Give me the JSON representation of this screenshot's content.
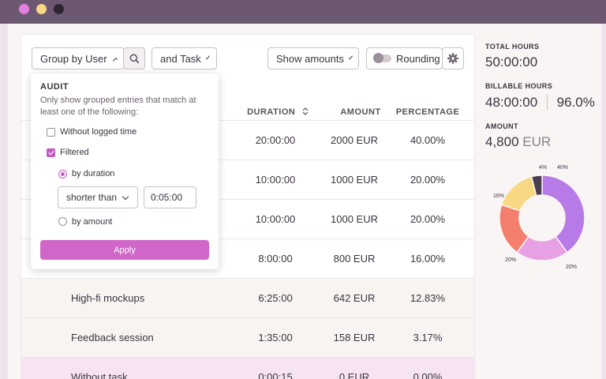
{
  "window": {
    "controls": [
      "close",
      "minimize",
      "maximize"
    ],
    "colors": {
      "titlebar": "#6c5870",
      "accent": "#d066c8"
    }
  },
  "toolbar": {
    "group_by_label": "Group by User",
    "and_task_label": "and Task",
    "show_amounts_label": "Show amounts",
    "rounding_label": "Rounding"
  },
  "table": {
    "headers": {
      "duration": "DURATION",
      "amount": "AMOUNT",
      "percentage": "PERCENTAGE"
    },
    "rows": [
      {
        "task": "",
        "duration": "20:00:00",
        "amount": "2000 EUR",
        "percentage": "40.00%"
      },
      {
        "task": "",
        "duration": "10:00:00",
        "amount": "1000 EUR",
        "percentage": "20.00%"
      },
      {
        "task": "",
        "duration": "10:00:00",
        "amount": "1000 EUR",
        "percentage": "20.00%"
      },
      {
        "task": "",
        "duration": "8:00:00",
        "amount": "800 EUR",
        "percentage": "16.00%"
      },
      {
        "task": "High-fi mockups",
        "duration": "6:25:00",
        "amount": "642 EUR",
        "percentage": "12.83%"
      },
      {
        "task": "Feedback session",
        "duration": "1:35:00",
        "amount": "158 EUR",
        "percentage": "3.17%"
      },
      {
        "task": "Without task",
        "duration": "0:00:15",
        "amount": "0 EUR",
        "percentage": "0.00%"
      }
    ]
  },
  "audit": {
    "title": "AUDIT",
    "description": "Only show grouped entries that match at least one of the following:",
    "without_logged_time": {
      "label": "Without logged time",
      "checked": false
    },
    "filtered": {
      "label": "Filtered",
      "checked": true
    },
    "by_duration": {
      "label": "by duration",
      "selected": true
    },
    "comparator": "shorter than",
    "duration_value": "0:05:00",
    "by_amount": {
      "label": "by amount",
      "selected": false
    },
    "apply_label": "Apply"
  },
  "summary": {
    "total_hours_label": "TOTAL HOURS",
    "total_hours": "50:00:00",
    "billable_hours_label": "BILLABLE HOURS",
    "billable_hours": "48:00:00",
    "billable_percent": "96.0%",
    "amount_label": "AMOUNT",
    "amount_value": "4,800",
    "amount_currency": "EUR"
  },
  "chart_data": {
    "type": "pie",
    "donut": true,
    "slices": [
      {
        "label": "40%",
        "value": 40,
        "color": "#b77ae6"
      },
      {
        "label": "20%",
        "value": 20,
        "color": "#e8a0e4"
      },
      {
        "label": "20%",
        "value": 20,
        "color": "#f57f6e"
      },
      {
        "label": "16%",
        "value": 16,
        "color": "#f8d882"
      },
      {
        "label": "4%",
        "value": 4,
        "color": "#4a3d4e"
      }
    ]
  }
}
